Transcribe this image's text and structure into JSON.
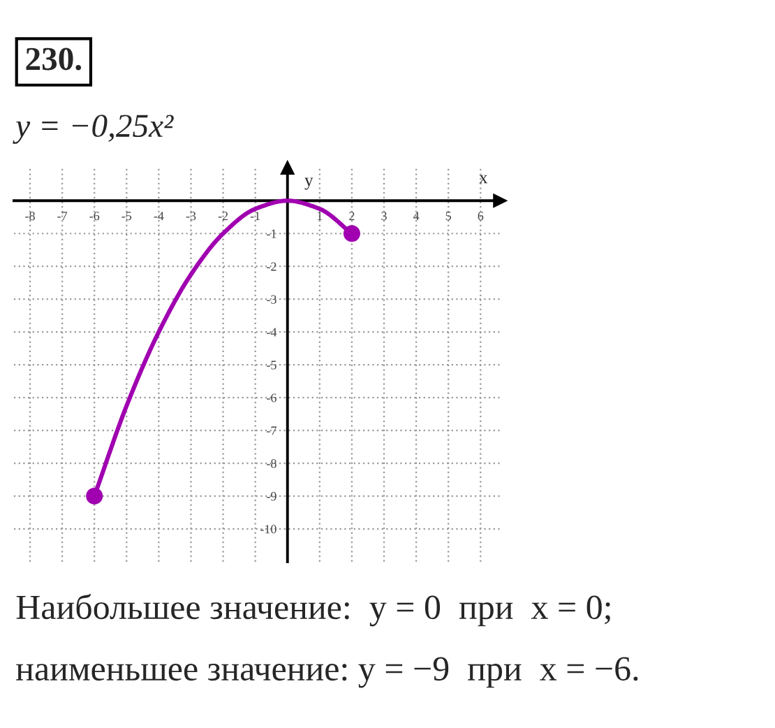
{
  "chart_data": {
    "type": "line",
    "title": "230.",
    "subtitle": "y = −0,25x²",
    "xlabel": "x",
    "ylabel": "y",
    "x": [
      -6,
      -5,
      -4,
      -3,
      -2,
      -1,
      0,
      1,
      2
    ],
    "series": [
      {
        "color": "#a000b0",
        "values": [
          -9,
          -6.25,
          -4,
          -2.25,
          -1,
          -0.25,
          0,
          -0.25,
          -1
        ]
      },
      {
        "type": "scatter",
        "x": [
          -6,
          2
        ],
        "color": "#a000b0",
        "marker": "circle",
        "values": [
          -9,
          -1
        ]
      }
    ],
    "xlim": [
      -8.5,
      6.6
    ],
    "ylim": [
      -11,
      1
    ],
    "xticks": [
      -8,
      -7,
      -6,
      -5,
      -4,
      -3,
      -2,
      -1,
      1,
      2,
      3,
      4,
      5,
      6
    ],
    "yticks": [
      -10,
      -9,
      -8,
      -7,
      -6,
      -5,
      -4,
      -3,
      -2,
      -1
    ],
    "grid": true,
    "annotations": [
      "Наибольшее значение:  y = 0  при  x = 0;",
      "наименьшее значение: y = −9  при  x = −6."
    ]
  }
}
